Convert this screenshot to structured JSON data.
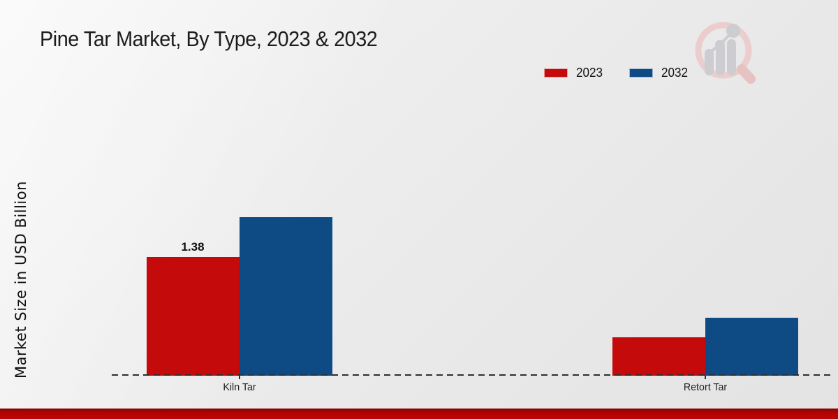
{
  "title": "Pine Tar Market, By Type, 2023 & 2032",
  "y_axis_label": "Market Size in USD Billion",
  "logo_icon": "magnifier-bar-chart-watermark",
  "colors": {
    "series_2023": "#c40a0a",
    "series_2032": "#0e4a84",
    "bottom_band": "#b30303",
    "axis": "#2e2e2e"
  },
  "chart_data": {
    "type": "bar",
    "title": "Pine Tar Market, By Type, 2023 & 2032",
    "categories": [
      "Kiln Tar",
      "Retort Tar"
    ],
    "series": [
      {
        "name": "2023",
        "color": "#c40a0a",
        "values": [
          1.38,
          0.45
        ],
        "labels": [
          "1.38",
          ""
        ]
      },
      {
        "name": "2032",
        "color": "#0e4a84",
        "values": [
          1.84,
          0.67
        ],
        "labels": [
          "",
          ""
        ]
      }
    ],
    "xlabel": "",
    "ylabel": "Market Size in USD Billion",
    "ylim": [
      0,
      2.0
    ],
    "grid": false,
    "legend_position": "top-right",
    "baseline_style": "dashed",
    "value_label_note": "only 2023 Kiln Tar bar is labeled"
  }
}
